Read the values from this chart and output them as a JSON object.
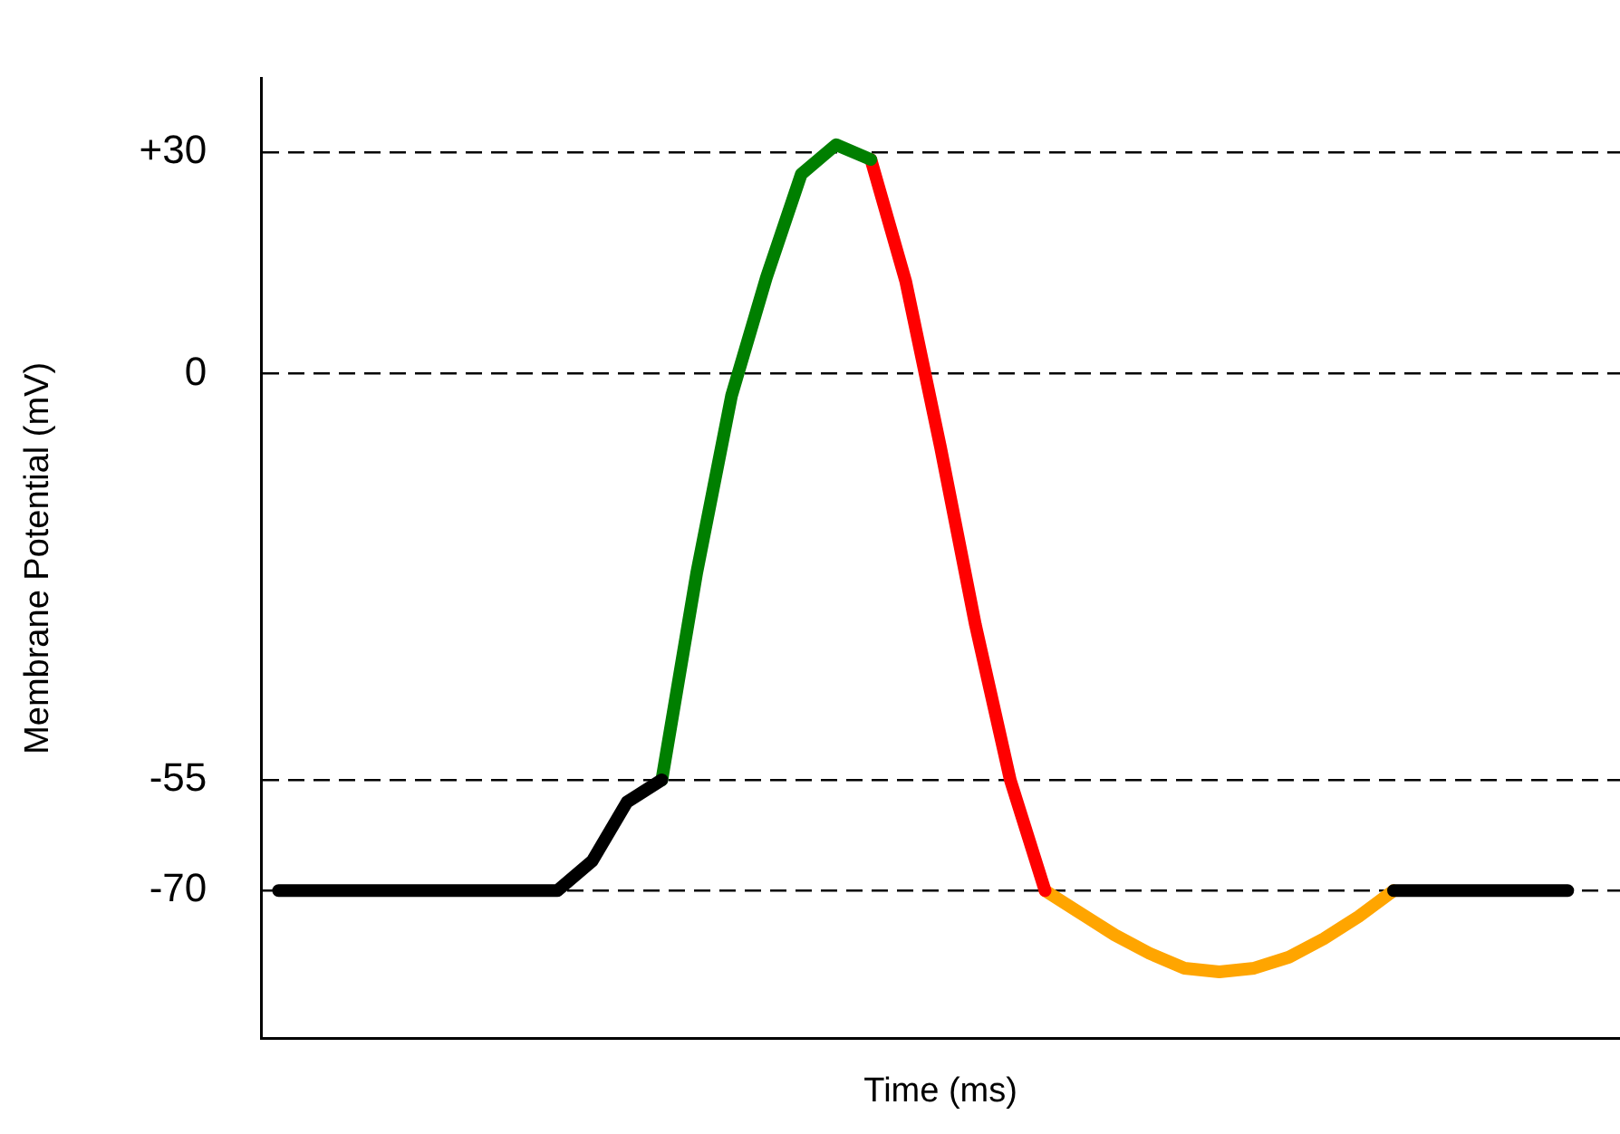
{
  "chart_data": {
    "type": "line",
    "xlabel": "Time (ms)",
    "ylabel": "Membrane Potential (mV)",
    "categories": [
      null,
      null,
      null,
      null,
      null,
      null,
      null,
      null,
      null,
      null,
      null,
      null,
      null,
      null,
      null,
      null,
      null,
      null,
      null,
      null,
      null,
      null,
      null,
      null,
      null,
      null,
      null,
      null,
      null,
      null,
      null,
      null,
      null,
      null,
      null,
      null,
      null,
      null,
      null
    ],
    "series": [
      {
        "color": "#000000",
        "values": [
          -70,
          -70,
          -70,
          -70,
          -70,
          -70,
          -70,
          -70,
          -70,
          -66,
          -58,
          -55,
          null,
          null,
          null,
          null,
          null,
          null,
          null,
          null,
          null,
          null,
          null,
          null,
          null,
          null,
          null,
          null,
          null,
          null,
          null,
          null,
          -70,
          -70,
          -70,
          -70,
          -70,
          -70,
          null
        ]
      },
      {
        "color": "#007f00",
        "values": [
          null,
          null,
          null,
          null,
          null,
          null,
          null,
          null,
          null,
          null,
          null,
          -55,
          -27,
          -3,
          13,
          27,
          31,
          29,
          null,
          null,
          null,
          null,
          null,
          null,
          null,
          null,
          null,
          null,
          null,
          null,
          null,
          null,
          null,
          null,
          null,
          null,
          null,
          null,
          null
        ]
      },
      {
        "color": "#ff0000",
        "values": [
          null,
          null,
          null,
          null,
          null,
          null,
          null,
          null,
          null,
          null,
          null,
          null,
          null,
          null,
          null,
          null,
          null,
          29,
          12.5,
          -10,
          -34,
          -55,
          -70,
          null,
          null,
          null,
          null,
          null,
          null,
          null,
          null,
          null,
          null,
          null,
          null,
          null,
          null,
          null,
          null
        ]
      },
      {
        "color": "#ffa500",
        "values": [
          null,
          null,
          null,
          null,
          null,
          null,
          null,
          null,
          null,
          null,
          null,
          null,
          null,
          null,
          null,
          null,
          null,
          null,
          null,
          null,
          null,
          null,
          -70,
          -73,
          -76,
          -78.5,
          -80.5,
          -81,
          -80.5,
          -79,
          -76.5,
          -73.5,
          -70,
          null,
          null,
          null,
          null,
          null,
          null
        ]
      }
    ],
    "ylim": [
      -90,
      40
    ],
    "yticks": [
      -70,
      -55,
      0,
      {
        "value": 30,
        "label": "+30"
      }
    ],
    "grid": "y",
    "legend": false,
    "tick_labels": "y",
    "marker": "none"
  }
}
